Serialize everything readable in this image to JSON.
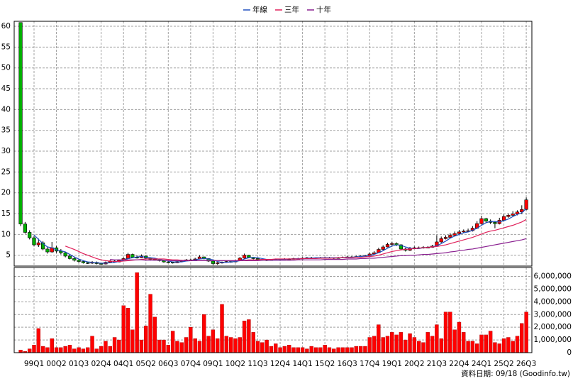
{
  "chart_data": [
    {
      "type": "candlestick",
      "legend": "top",
      "grid": true,
      "up_color": "#ff0000",
      "down_color": "#00b000",
      "categories": [
        null,
        null,
        null,
        "99Q1",
        null,
        null,
        null,
        null,
        "00Q2",
        null,
        null,
        null,
        null,
        "01Q3",
        null,
        null,
        null,
        null,
        "02Q4",
        null,
        null,
        null,
        null,
        "04Q1",
        null,
        null,
        null,
        null,
        "05Q2",
        null,
        null,
        null,
        null,
        "06Q3",
        null,
        null,
        null,
        null,
        "07Q4",
        null,
        null,
        null,
        null,
        "09Q1",
        null,
        null,
        null,
        null,
        "10Q2",
        null,
        null,
        null,
        null,
        "11Q3",
        null,
        null,
        null,
        null,
        "12Q4",
        null,
        null,
        null,
        null,
        "14Q1",
        null,
        null,
        null,
        null,
        "15Q2",
        null,
        null,
        null,
        null,
        "16Q3",
        null,
        null,
        null,
        null,
        "17Q4",
        null,
        null,
        null,
        null,
        "19Q1",
        null,
        null,
        null,
        null,
        "20Q2",
        null,
        null,
        null,
        null,
        "21Q3",
        null,
        null,
        null,
        null,
        "22Q4",
        null,
        null,
        null,
        null,
        "24Q1",
        null,
        null,
        null,
        null,
        "25Q2",
        null,
        null,
        null,
        null,
        "26Q3"
      ],
      "open": [
        60.9,
        12.5,
        10.5,
        9.2,
        7.5,
        8.0,
        6.5,
        5.8,
        6.8,
        6.0,
        5.6,
        4.8,
        4.2,
        3.8,
        3.5,
        3.2,
        3.1,
        3.3,
        3.0,
        2.9,
        3.3,
        3.6,
        3.4,
        3.8,
        4.2,
        5.2,
        4.5,
        4.4,
        4.8,
        4.3,
        4.0,
        4.1,
        3.7,
        3.4,
        3.3,
        3.2,
        3.5,
        3.7,
        3.9,
        3.8,
        4.1,
        4.6,
        4.2,
        3.6,
        3.0,
        3.2,
        3.3,
        3.5,
        3.4,
        3.7,
        4.3,
        5.0,
        4.5,
        4.2,
        4.0,
        3.9,
        3.8,
        3.9,
        4.0,
        4.0,
        4.1,
        4.1,
        4.2,
        4.2,
        4.3,
        4.4,
        4.4,
        4.3,
        4.4,
        4.4,
        4.4,
        4.3,
        4.4,
        4.5,
        4.6,
        4.6,
        4.7,
        4.8,
        4.9,
        5.3,
        5.6,
        6.4,
        7.0,
        7.6,
        7.8,
        7.5,
        6.5,
        6.2,
        6.7,
        6.8,
        6.8,
        6.9,
        6.9,
        7.2,
        8.2,
        9.0,
        9.3,
        9.8,
        10.2,
        10.6,
        10.8,
        10.9,
        11.5,
        12.6,
        13.8,
        13.2,
        12.9,
        12.6,
        13.4,
        14.3,
        14.6,
        14.9,
        15.4,
        16.0
      ],
      "high": [
        60.9,
        13.0,
        11.0,
        9.6,
        9.0,
        8.4,
        7.0,
        8.2,
        7.2,
        6.5,
        5.9,
        5.2,
        4.5,
        4.1,
        3.8,
        3.5,
        3.6,
        3.5,
        3.2,
        3.5,
        3.9,
        3.8,
        4.0,
        4.5,
        5.6,
        5.4,
        5.0,
        5.2,
        4.9,
        4.5,
        4.3,
        4.2,
        3.8,
        3.6,
        3.5,
        3.7,
        3.9,
        4.1,
        4.2,
        4.4,
        5.0,
        4.7,
        4.3,
        3.7,
        3.4,
        3.5,
        3.7,
        3.7,
        3.9,
        4.6,
        5.4,
        5.1,
        4.6,
        4.3,
        4.1,
        4.0,
        4.1,
        4.2,
        4.2,
        4.3,
        4.3,
        4.4,
        4.4,
        4.5,
        4.6,
        4.6,
        4.5,
        4.6,
        4.6,
        4.6,
        4.5,
        4.6,
        4.7,
        4.8,
        4.8,
        4.9,
        5.0,
        5.1,
        5.6,
        6.0,
        6.8,
        7.4,
        8.0,
        8.2,
        8.1,
        7.7,
        6.8,
        7.0,
        7.1,
        7.1,
        7.2,
        7.2,
        7.5,
        9.8,
        9.5,
        9.8,
        10.3,
        10.7,
        11.1,
        11.2,
        11.4,
        12.0,
        13.2,
        14.5,
        14.0,
        13.6,
        13.2,
        14.0,
        14.8,
        15.0,
        15.6,
        15.8,
        17.0,
        18.9
      ],
      "low": [
        12.0,
        10.2,
        8.8,
        7.2,
        7.0,
        6.2,
        5.4,
        5.6,
        5.6,
        5.2,
        4.5,
        4.0,
        3.5,
        3.2,
        3.0,
        2.9,
        2.9,
        2.8,
        2.7,
        2.8,
        3.2,
        3.2,
        3.3,
        3.7,
        4.1,
        4.3,
        4.2,
        4.3,
        4.1,
        3.8,
        3.8,
        3.5,
        3.2,
        3.1,
        3.0,
        3.1,
        3.4,
        3.6,
        3.6,
        3.7,
        4.0,
        4.0,
        3.4,
        2.6,
        2.7,
        3.0,
        3.2,
        3.2,
        3.3,
        3.6,
        4.2,
        4.3,
        4.0,
        3.8,
        3.7,
        3.6,
        3.7,
        3.8,
        3.8,
        3.9,
        3.9,
        4.0,
        4.0,
        4.1,
        4.2,
        4.2,
        4.1,
        4.2,
        4.2,
        4.2,
        4.1,
        4.2,
        4.3,
        4.4,
        4.4,
        4.5,
        4.6,
        4.7,
        4.8,
        5.2,
        5.5,
        6.2,
        6.9,
        7.3,
        7.2,
        6.2,
        5.9,
        6.0,
        6.5,
        6.6,
        6.6,
        6.7,
        6.8,
        7.1,
        8.0,
        8.8,
        9.1,
        9.6,
        10.0,
        10.3,
        10.5,
        10.7,
        11.3,
        12.4,
        12.8,
        12.5,
        11.5,
        12.4,
        13.2,
        14.0,
        14.3,
        14.6,
        14.9,
        15.8
      ],
      "close": [
        12.5,
        10.5,
        9.2,
        7.5,
        8.0,
        6.5,
        5.8,
        6.8,
        6.0,
        5.6,
        4.8,
        4.2,
        3.8,
        3.5,
        3.2,
        3.1,
        3.3,
        3.0,
        2.9,
        3.3,
        3.6,
        3.4,
        3.8,
        4.2,
        5.2,
        4.5,
        4.4,
        4.8,
        4.3,
        4.0,
        4.1,
        3.7,
        3.4,
        3.3,
        3.2,
        3.5,
        3.7,
        3.9,
        3.8,
        4.1,
        4.6,
        4.2,
        3.6,
        3.0,
        3.2,
        3.3,
        3.5,
        3.4,
        3.7,
        4.3,
        5.0,
        4.5,
        4.2,
        4.0,
        3.9,
        3.8,
        3.9,
        4.0,
        4.0,
        4.1,
        4.1,
        4.2,
        4.2,
        4.3,
        4.4,
        4.4,
        4.3,
        4.4,
        4.4,
        4.4,
        4.3,
        4.4,
        4.5,
        4.6,
        4.6,
        4.7,
        4.8,
        4.9,
        5.3,
        5.6,
        6.4,
        7.0,
        7.6,
        7.8,
        7.5,
        6.5,
        6.2,
        6.7,
        6.8,
        6.8,
        6.9,
        6.9,
        7.2,
        8.2,
        9.0,
        9.3,
        9.8,
        10.2,
        10.6,
        10.8,
        10.9,
        11.5,
        12.6,
        13.8,
        13.2,
        12.9,
        12.6,
        13.4,
        14.3,
        14.6,
        14.9,
        15.4,
        16.0,
        18.3
      ],
      "series": [
        {
          "name": "年線",
          "color": "#2050c0",
          "values": [
            null,
            null,
            null,
            9.9,
            8.8,
            7.8,
            7.0,
            6.8,
            6.3,
            6.1,
            5.8,
            5.2,
            4.6,
            4.1,
            3.7,
            3.4,
            3.3,
            3.2,
            3.1,
            3.1,
            3.2,
            3.3,
            3.5,
            3.8,
            4.2,
            4.4,
            4.6,
            4.7,
            4.5,
            4.4,
            4.3,
            4.0,
            3.8,
            3.6,
            3.4,
            3.4,
            3.4,
            3.6,
            3.7,
            3.9,
            4.1,
            4.2,
            4.1,
            3.9,
            3.5,
            3.3,
            3.3,
            3.4,
            3.5,
            3.7,
            4.1,
            4.4,
            4.5,
            4.4,
            4.2,
            4.0,
            3.9,
            3.9,
            3.9,
            4.0,
            4.1,
            4.1,
            4.2,
            4.2,
            4.3,
            4.3,
            4.4,
            4.4,
            4.4,
            4.4,
            4.4,
            4.4,
            4.4,
            4.5,
            4.5,
            4.6,
            4.7,
            4.8,
            4.9,
            5.2,
            5.6,
            6.1,
            6.7,
            7.2,
            7.5,
            7.4,
            7.0,
            6.7,
            6.6,
            6.6,
            6.8,
            6.9,
            7.0,
            7.3,
            7.8,
            8.4,
            9.1,
            9.6,
            10.0,
            10.4,
            10.6,
            11.0,
            11.5,
            12.2,
            12.8,
            13.1,
            13.1,
            13.0,
            13.3,
            13.7,
            14.3,
            14.8,
            15.2,
            16.2
          ]
        },
        {
          "name": "三年",
          "color": "#e0205a",
          "values": [
            null,
            null,
            null,
            null,
            null,
            null,
            null,
            null,
            null,
            null,
            7.2,
            6.8,
            6.4,
            5.9,
            5.4,
            5.0,
            4.6,
            4.2,
            3.9,
            3.7,
            3.6,
            3.5,
            3.5,
            3.6,
            3.7,
            3.8,
            3.9,
            4.0,
            4.1,
            4.1,
            4.1,
            4.1,
            4.1,
            4.0,
            3.9,
            3.9,
            3.8,
            3.8,
            3.8,
            3.7,
            3.7,
            3.7,
            3.7,
            3.7,
            3.7,
            3.7,
            3.7,
            3.7,
            3.7,
            3.8,
            3.8,
            3.9,
            3.9,
            3.9,
            4.0,
            4.0,
            4.0,
            4.1,
            4.1,
            4.1,
            4.1,
            4.1,
            4.1,
            4.2,
            4.2,
            4.2,
            4.2,
            4.3,
            4.3,
            4.3,
            4.3,
            4.4,
            4.4,
            4.4,
            4.4,
            4.5,
            4.5,
            4.6,
            4.7,
            4.8,
            5.0,
            5.3,
            5.6,
            5.9,
            6.1,
            6.3,
            6.4,
            6.5,
            6.6,
            6.7,
            6.8,
            6.9,
            7.0,
            7.1,
            7.3,
            7.5,
            7.8,
            8.1,
            8.4,
            8.7,
            9.0,
            9.3,
            9.7,
            10.1,
            10.5,
            10.8,
            11.0,
            11.3,
            11.6,
            11.9,
            12.2,
            12.6,
            13.0,
            13.6
          ]
        },
        {
          "name": "十年",
          "color": "#8a2090",
          "values": [
            null,
            null,
            null,
            null,
            null,
            null,
            null,
            null,
            null,
            null,
            null,
            null,
            null,
            null,
            null,
            null,
            null,
            null,
            null,
            null,
            4.0,
            3.9,
            3.9,
            3.9,
            3.9,
            3.9,
            3.9,
            3.9,
            3.8,
            3.8,
            3.8,
            3.8,
            3.8,
            3.7,
            3.7,
            3.7,
            3.7,
            3.7,
            3.7,
            3.7,
            3.7,
            3.7,
            3.7,
            3.7,
            3.7,
            3.7,
            3.7,
            3.7,
            3.7,
            3.7,
            3.7,
            3.7,
            3.7,
            3.7,
            3.8,
            3.8,
            3.8,
            3.8,
            3.8,
            3.8,
            3.8,
            3.8,
            3.9,
            3.9,
            3.9,
            3.9,
            3.9,
            3.9,
            4.0,
            4.0,
            4.0,
            4.0,
            4.0,
            4.1,
            4.1,
            4.1,
            4.2,
            4.2,
            4.3,
            4.3,
            4.4,
            4.5,
            4.6,
            4.7,
            4.8,
            4.9,
            4.9,
            5.0,
            5.0,
            5.1,
            5.2,
            5.2,
            5.3,
            5.4,
            5.5,
            5.6,
            5.8,
            5.9,
            6.1,
            6.2,
            6.4,
            6.5,
            6.7,
            6.9,
            7.1,
            7.3,
            7.5,
            7.7,
            7.9,
            8.1,
            8.3,
            8.5,
            8.7,
            9.0
          ]
        }
      ],
      "ylim": [
        2.4,
        61.2
      ],
      "yticks": [
        5,
        10,
        15,
        20,
        25,
        30,
        35,
        40,
        45,
        50,
        55,
        60
      ]
    },
    {
      "type": "bar",
      "color": "#ff0000",
      "grid": true,
      "values": [
        200000,
        100000,
        300000,
        600000,
        1900000,
        500000,
        400000,
        1100000,
        400000,
        400000,
        500000,
        600000,
        300000,
        400000,
        300000,
        400000,
        1300000,
        300000,
        500000,
        900000,
        500000,
        1200000,
        1000000,
        3700000,
        3500000,
        1800000,
        6300000,
        1000000,
        2100000,
        4600000,
        2800000,
        1000000,
        1000000,
        600000,
        1700000,
        900000,
        800000,
        1200000,
        2000000,
        1100000,
        900000,
        3000000,
        1300000,
        1800000,
        1100000,
        3800000,
        1300000,
        1200000,
        1100000,
        1200000,
        2500000,
        2600000,
        1600000,
        900000,
        800000,
        1000000,
        500000,
        700000,
        400000,
        500000,
        600000,
        400000,
        400000,
        400000,
        300000,
        500000,
        400000,
        400000,
        600000,
        400000,
        300000,
        400000,
        400000,
        400000,
        400000,
        500000,
        500000,
        500000,
        1200000,
        1300000,
        2200000,
        1200000,
        1300000,
        1600000,
        1400000,
        1600000,
        1000000,
        1500000,
        1200000,
        900000,
        800000,
        1600000,
        1300000,
        2200000,
        1100000,
        3200000,
        3200000,
        1800000,
        2400000,
        1600000,
        900000,
        900000,
        700000,
        1400000,
        1400000,
        1700000,
        800000,
        700000,
        1100000,
        1200000,
        900000,
        1300000,
        2300000,
        3200000
      ],
      "ylim": [
        0,
        6700000
      ],
      "yticks": [
        0,
        {
          "value": 1000000,
          "label": "1,000,000"
        },
        {
          "value": 2000000,
          "label": "2,000,000"
        },
        {
          "value": 3000000,
          "label": "3,000,000"
        },
        {
          "value": 4000000,
          "label": "4,000,000"
        },
        {
          "value": 5000000,
          "label": "5,000,000"
        },
        {
          "value": 6000000,
          "label": "6,000,000"
        }
      ]
    }
  ],
  "footer": "資料日期: 09/18 (Goodinfo.tw)"
}
